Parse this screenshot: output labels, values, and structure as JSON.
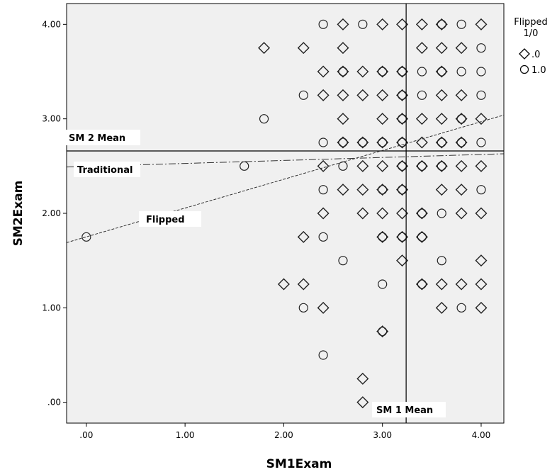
{
  "chart_data": {
    "type": "scatter",
    "xlabel": "SM1Exam",
    "ylabel": "SM2Exam",
    "xlim": [
      -0.2,
      4.23
    ],
    "ylim": [
      -0.22,
      4.22
    ],
    "xticks": [
      0,
      1,
      2,
      3,
      4
    ],
    "yticks": [
      0,
      1,
      2,
      3,
      4
    ],
    "xtick_labels": [
      ".00",
      "1.00",
      "2.00",
      "3.00",
      "4.00"
    ],
    "ytick_labels": [
      ".00",
      "1.00",
      "2.00",
      "3.00",
      "4.00"
    ],
    "background": "#f0f0f0",
    "legend": {
      "title_line1": "Flipped",
      "title_line2": "1/0",
      "position": "top-right-outside",
      "entries": [
        {
          "marker": "diamond",
          "label": ".0"
        },
        {
          "marker": "circle",
          "label": "1.0"
        }
      ]
    },
    "reference_lines": [
      {
        "orientation": "horizontal",
        "y": 2.66,
        "label": "SM 2 Mean"
      },
      {
        "orientation": "vertical",
        "x": 3.24,
        "label": "SM 1 Mean"
      }
    ],
    "fit_lines": [
      {
        "label": "Traditional",
        "style": "dash-dot",
        "x": [
          -0.2,
          4.23
        ],
        "y": [
          2.49,
          2.63
        ]
      },
      {
        "label": "Flipped",
        "style": "dashed",
        "x": [
          -0.2,
          4.23
        ],
        "y": [
          1.69,
          3.04
        ]
      }
    ],
    "series": [
      {
        "name": ".0",
        "marker": "diamond",
        "points": [
          [
            2.6,
            4.0
          ],
          [
            3.0,
            4.0
          ],
          [
            3.2,
            4.0
          ],
          [
            3.4,
            4.0
          ],
          [
            3.6,
            4.0
          ],
          [
            4.0,
            4.0
          ],
          [
            1.8,
            3.75
          ],
          [
            2.2,
            3.75
          ],
          [
            2.6,
            3.75
          ],
          [
            3.4,
            3.75
          ],
          [
            3.6,
            3.75
          ],
          [
            3.8,
            3.75
          ],
          [
            2.4,
            3.5
          ],
          [
            2.6,
            3.5
          ],
          [
            2.8,
            3.5
          ],
          [
            3.0,
            3.5
          ],
          [
            3.2,
            3.5
          ],
          [
            3.6,
            3.5
          ],
          [
            2.4,
            3.25
          ],
          [
            2.6,
            3.25
          ],
          [
            2.8,
            3.25
          ],
          [
            3.0,
            3.25
          ],
          [
            3.2,
            3.25
          ],
          [
            3.6,
            3.25
          ],
          [
            3.8,
            3.25
          ],
          [
            2.6,
            3.0
          ],
          [
            3.0,
            3.0
          ],
          [
            3.2,
            3.0
          ],
          [
            3.4,
            3.0
          ],
          [
            3.6,
            3.0
          ],
          [
            3.8,
            3.0
          ],
          [
            4.0,
            3.0
          ],
          [
            2.6,
            2.75
          ],
          [
            2.8,
            2.75
          ],
          [
            3.0,
            2.75
          ],
          [
            3.2,
            2.75
          ],
          [
            3.4,
            2.75
          ],
          [
            3.6,
            2.75
          ],
          [
            3.8,
            2.75
          ],
          [
            2.4,
            2.5
          ],
          [
            2.8,
            2.5
          ],
          [
            3.0,
            2.5
          ],
          [
            3.2,
            2.5
          ],
          [
            3.4,
            2.5
          ],
          [
            3.6,
            2.5
          ],
          [
            3.8,
            2.5
          ],
          [
            4.0,
            2.5
          ],
          [
            2.6,
            2.25
          ],
          [
            2.8,
            2.25
          ],
          [
            3.0,
            2.25
          ],
          [
            3.2,
            2.25
          ],
          [
            3.6,
            2.25
          ],
          [
            3.8,
            2.25
          ],
          [
            2.4,
            2.0
          ],
          [
            2.8,
            2.0
          ],
          [
            3.0,
            2.0
          ],
          [
            3.2,
            2.0
          ],
          [
            3.4,
            2.0
          ],
          [
            3.8,
            2.0
          ],
          [
            4.0,
            2.0
          ],
          [
            2.2,
            1.75
          ],
          [
            3.0,
            1.75
          ],
          [
            3.2,
            1.75
          ],
          [
            3.4,
            1.75
          ],
          [
            3.2,
            1.5
          ],
          [
            4.0,
            1.5
          ],
          [
            2.0,
            1.25
          ],
          [
            2.2,
            1.25
          ],
          [
            3.4,
            1.25
          ],
          [
            3.6,
            1.25
          ],
          [
            3.8,
            1.25
          ],
          [
            4.0,
            1.25
          ],
          [
            2.4,
            1.0
          ],
          [
            3.6,
            1.0
          ],
          [
            4.0,
            1.0
          ],
          [
            3.0,
            0.75
          ],
          [
            2.8,
            0.25
          ],
          [
            2.8,
            0.0
          ]
        ]
      },
      {
        "name": "1.0",
        "marker": "circle",
        "points": [
          [
            2.4,
            4.0
          ],
          [
            2.8,
            4.0
          ],
          [
            3.6,
            4.0
          ],
          [
            3.8,
            4.0
          ],
          [
            4.0,
            3.75
          ],
          [
            2.6,
            3.5
          ],
          [
            3.0,
            3.5
          ],
          [
            3.2,
            3.5
          ],
          [
            3.4,
            3.5
          ],
          [
            3.6,
            3.5
          ],
          [
            3.8,
            3.5
          ],
          [
            4.0,
            3.5
          ],
          [
            2.2,
            3.25
          ],
          [
            3.2,
            3.25
          ],
          [
            3.4,
            3.25
          ],
          [
            4.0,
            3.25
          ],
          [
            1.8,
            3.0
          ],
          [
            3.2,
            3.0
          ],
          [
            3.8,
            3.0
          ],
          [
            2.4,
            2.75
          ],
          [
            2.6,
            2.75
          ],
          [
            2.8,
            2.75
          ],
          [
            3.0,
            2.75
          ],
          [
            3.2,
            2.75
          ],
          [
            3.6,
            2.75
          ],
          [
            3.8,
            2.75
          ],
          [
            4.0,
            2.75
          ],
          [
            1.6,
            2.5
          ],
          [
            2.6,
            2.5
          ],
          [
            3.2,
            2.5
          ],
          [
            3.4,
            2.5
          ],
          [
            3.6,
            2.5
          ],
          [
            2.4,
            2.25
          ],
          [
            3.0,
            2.25
          ],
          [
            3.2,
            2.25
          ],
          [
            4.0,
            2.25
          ],
          [
            3.4,
            2.0
          ],
          [
            3.6,
            2.0
          ],
          [
            0.0,
            1.75
          ],
          [
            2.4,
            1.75
          ],
          [
            3.0,
            1.75
          ],
          [
            3.2,
            1.75
          ],
          [
            3.4,
            1.75
          ],
          [
            2.6,
            1.5
          ],
          [
            3.6,
            1.5
          ],
          [
            3.0,
            1.25
          ],
          [
            3.4,
            1.25
          ],
          [
            2.2,
            1.0
          ],
          [
            3.8,
            1.0
          ],
          [
            3.0,
            0.75
          ],
          [
            2.4,
            0.5
          ]
        ]
      }
    ]
  }
}
